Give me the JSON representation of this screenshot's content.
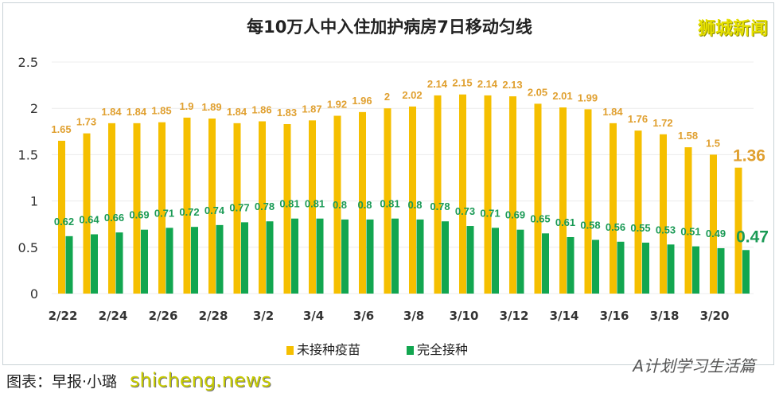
{
  "chart_data": {
    "type": "bar",
    "title": "每10万人中入住加护病房7日移动匀线",
    "categories": [
      "2/22",
      "2/23",
      "2/24",
      "2/25",
      "2/26",
      "2/27",
      "2/28",
      "3/1",
      "3/2",
      "3/3",
      "3/4",
      "3/5",
      "3/6",
      "3/7",
      "3/8",
      "3/9",
      "3/10",
      "3/11",
      "3/12",
      "3/13",
      "3/14",
      "3/15",
      "3/16",
      "3/17",
      "3/18",
      "3/19",
      "3/20",
      "3/21"
    ],
    "tick_labels": [
      "2/22",
      "2/24",
      "2/26",
      "2/28",
      "3/2",
      "3/4",
      "3/6",
      "3/8",
      "3/10",
      "3/12",
      "3/14",
      "3/16",
      "3/18",
      "3/20"
    ],
    "series": [
      {
        "name": "未接种疫苗",
        "color": "#f5bf00",
        "label_color": "#e0a030",
        "values": [
          1.65,
          1.73,
          1.84,
          1.84,
          1.85,
          1.9,
          1.89,
          1.84,
          1.86,
          1.83,
          1.87,
          1.92,
          1.96,
          2,
          2.02,
          2.14,
          2.15,
          2.14,
          2.13,
          2.05,
          2.01,
          1.99,
          1.84,
          1.76,
          1.72,
          1.58,
          1.5,
          1.36
        ]
      },
      {
        "name": "完全接种",
        "color": "#12a650",
        "label_color": "#1a9a55",
        "values": [
          0.62,
          0.64,
          0.66,
          0.69,
          0.71,
          0.72,
          0.74,
          0.77,
          0.78,
          0.81,
          0.81,
          0.8,
          0.8,
          0.81,
          0.8,
          0.78,
          0.73,
          0.71,
          0.69,
          0.65,
          0.61,
          0.58,
          0.56,
          0.55,
          0.53,
          0.51,
          0.49,
          0.47
        ]
      }
    ],
    "yticks": [
      0,
      0.5,
      1,
      1.5,
      2,
      2.5
    ],
    "ylim": [
      0,
      2.5
    ],
    "grid": true,
    "legend": "bottom"
  },
  "watermark": "狮城新闻",
  "footer": {
    "source": "图表：早报·小璐",
    "site": "shicheng.news",
    "wechat": "A计划学习生活篇"
  }
}
